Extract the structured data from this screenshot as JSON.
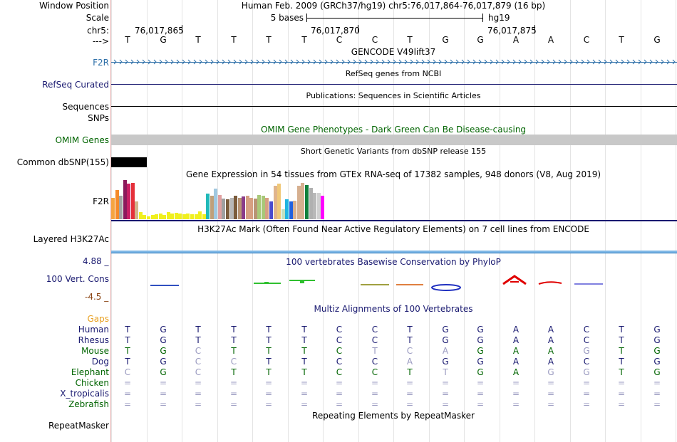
{
  "header": {
    "window_label": "Window Position",
    "window_text": "Human Feb. 2009 (GRCh37/hg19)   chr5:76,017,864-76,017,879 (16 bp)",
    "scale_label": "Scale",
    "scale_text": "5 bases",
    "assembly": "hg19",
    "chrom_label": "chr5:",
    "coords": [
      "76,017,865",
      "76,017,870",
      "76,017,875"
    ],
    "strand_label": "--->"
  },
  "reference_seq": [
    "T",
    "G",
    "T",
    "T",
    "T",
    "T",
    "C",
    "C",
    "T",
    "G",
    "G",
    "A",
    "A",
    "C",
    "T",
    "G"
  ],
  "tracks": {
    "gencode_title": "GENCODE V49lift37",
    "f2r_label": "F2R",
    "refseq_title": "RefSeq genes from NCBI",
    "refseq_label": "RefSeq Curated",
    "pubs_title": "Publications: Sequences in Scientific Articles",
    "sequences_label": "Sequences",
    "snps_label": "SNPs",
    "omim_title": "OMIM Gene Phenotypes - Dark Green Can Be Disease-causing",
    "omim_label": "OMIM Genes",
    "dbsnp_title": "Short Genetic Variants from dbSNP release 155",
    "dbsnp_label": "Common dbSNP(155)",
    "gtex_title": "Gene Expression in 54 tissues from GTEx RNA-seq of 17382 samples, 948 donors (V8, Aug 2019)",
    "gtex_label": "F2R",
    "h3k27_title": "H3K27Ac Mark (Often Found Near Active Regulatory Elements) on 7 cell lines from ENCODE",
    "h3k27_label": "Layered H3K27Ac",
    "phylop_title": "100 vertebrates Basewise Conservation by PhyloP",
    "phylop_label": "100 Vert. Cons",
    "phylop_max": "4.88 _",
    "phylop_min": "-4.5 _",
    "multiz_title": "Multiz Alignments of 100 Vertebrates",
    "gaps_label": "Gaps",
    "repeat_title": "Repeating Elements by RepeatMasker",
    "repeat_label": "RepeatMasker"
  },
  "gtex": {
    "values": [
      0.55,
      0.75,
      0.6,
      1.0,
      0.9,
      0.92,
      0.45,
      0.18,
      0.1,
      0.08,
      0.1,
      0.12,
      0.15,
      0.1,
      0.18,
      0.14,
      0.16,
      0.14,
      0.12,
      0.15,
      0.12,
      0.12,
      0.2,
      0.12,
      0.65,
      0.6,
      0.78,
      0.62,
      0.52,
      0.5,
      0.55,
      0.6,
      0.55,
      0.58,
      0.6,
      0.55,
      0.52,
      0.62,
      0.6,
      0.55,
      0.45,
      0.85,
      0.9,
      0.25,
      0.5,
      0.45,
      0.48,
      0.85,
      0.92,
      0.88,
      0.8,
      0.68,
      0.68,
      0.6
    ],
    "colors": [
      "#f5a441",
      "#f58a2a",
      "#a3a3a3",
      "#8b1a5c",
      "#c81f64",
      "#e5303a",
      "#d2b48c",
      "#f0f01e",
      "#f0f01e",
      "#f0f01e",
      "#f0f01e",
      "#f0f01e",
      "#f0f01e",
      "#f0f01e",
      "#f0f01e",
      "#f0f01e",
      "#f0f01e",
      "#f0f01e",
      "#f0f01e",
      "#f0f01e",
      "#f0f01e",
      "#f0f01e",
      "#f0f01e",
      "#f0f01e",
      "#21b9b9",
      "#bfa07a",
      "#a0c8e0",
      "#e0a0a0",
      "#a0a0a0",
      "#7b5c3c",
      "#b8b8b8",
      "#7b5c3c",
      "#b89474",
      "#8a3c8a",
      "#d6a082",
      "#d6a082",
      "#b89474",
      "#a8c878",
      "#a8c878",
      "#d6a082",
      "#4b4bcf",
      "#e0b48c",
      "#f0c878",
      "#c0e0c0",
      "#20b4e0",
      "#2060e0",
      "#d6b090",
      "#d6b090",
      "#d6b090",
      "#10803c",
      "#b0b0b0",
      "#b8b8b8",
      "#d0d0d0",
      "#ff00ff"
    ]
  },
  "multiz": [
    {
      "species": "Human",
      "color": "#191970",
      "bases": [
        "T",
        "G",
        "T",
        "T",
        "T",
        "T",
        "C",
        "C",
        "T",
        "G",
        "G",
        "A",
        "A",
        "C",
        "T",
        "G"
      ],
      "faint": []
    },
    {
      "species": "Rhesus",
      "color": "#191970",
      "bases": [
        "T",
        "G",
        "T",
        "T",
        "T",
        "T",
        "C",
        "C",
        "T",
        "G",
        "G",
        "A",
        "A",
        "C",
        "T",
        "G"
      ],
      "faint": []
    },
    {
      "species": "Mouse",
      "color": "#006400",
      "bases": [
        "T",
        "G",
        "C",
        "T",
        "T",
        "T",
        "C",
        "T",
        "C",
        "A",
        "G",
        "A",
        "A",
        "G",
        "T",
        "G"
      ],
      "faint": [
        2,
        7,
        8,
        9,
        13
      ]
    },
    {
      "species": "Dog",
      "color": "#191970",
      "bases": [
        "T",
        "G",
        "C",
        "C",
        "T",
        "T",
        "C",
        "C",
        "A",
        "G",
        "G",
        "A",
        "A",
        "C",
        "T",
        "G"
      ],
      "faint": [
        2,
        3,
        8
      ]
    },
    {
      "species": "Elephant",
      "color": "#006400",
      "bases": [
        "C",
        "G",
        "C",
        "T",
        "T",
        "T",
        "C",
        "C",
        "T",
        "T",
        "G",
        "A",
        "G",
        "G",
        "T",
        "G"
      ],
      "faint": [
        0,
        2,
        9,
        12,
        13
      ]
    },
    {
      "species": "Chicken",
      "color": "#006400",
      "bases": [
        "=",
        "=",
        "=",
        "=",
        "=",
        "=",
        "=",
        "=",
        "=",
        "=",
        "=",
        "=",
        "=",
        "=",
        "=",
        "="
      ],
      "faint": [
        0,
        1,
        2,
        3,
        4,
        5,
        6,
        7,
        8,
        9,
        10,
        11,
        12,
        13,
        14,
        15
      ]
    },
    {
      "species": "X_tropicalis",
      "color": "#191970",
      "bases": [
        "=",
        "=",
        "=",
        "=",
        "=",
        "=",
        "=",
        "=",
        "=",
        "=",
        "=",
        "=",
        "=",
        "=",
        "=",
        "="
      ],
      "faint": [
        0,
        1,
        2,
        3,
        4,
        5,
        6,
        7,
        8,
        9,
        10,
        11,
        12,
        13,
        14,
        15
      ]
    },
    {
      "species": "Zebrafish",
      "color": "#006400",
      "bases": [
        "=",
        "=",
        "=",
        "=",
        "=",
        "=",
        "=",
        "=",
        "=",
        "=",
        "=",
        "=",
        "=",
        "=",
        "=",
        "="
      ],
      "faint": [
        0,
        1,
        2,
        3,
        4,
        5,
        6,
        7,
        8,
        9,
        10,
        11,
        12,
        13,
        14,
        15
      ]
    }
  ],
  "colors": {
    "blue_track": "#2d6fa8",
    "navy": "#191970",
    "green": "#006400",
    "gray_bar": "#c8c8c8",
    "h3k27": "#1e6fb5",
    "gaps": "#e8a020",
    "phylop_max": "#8b4513",
    "phylop_min": "#8b4513"
  }
}
